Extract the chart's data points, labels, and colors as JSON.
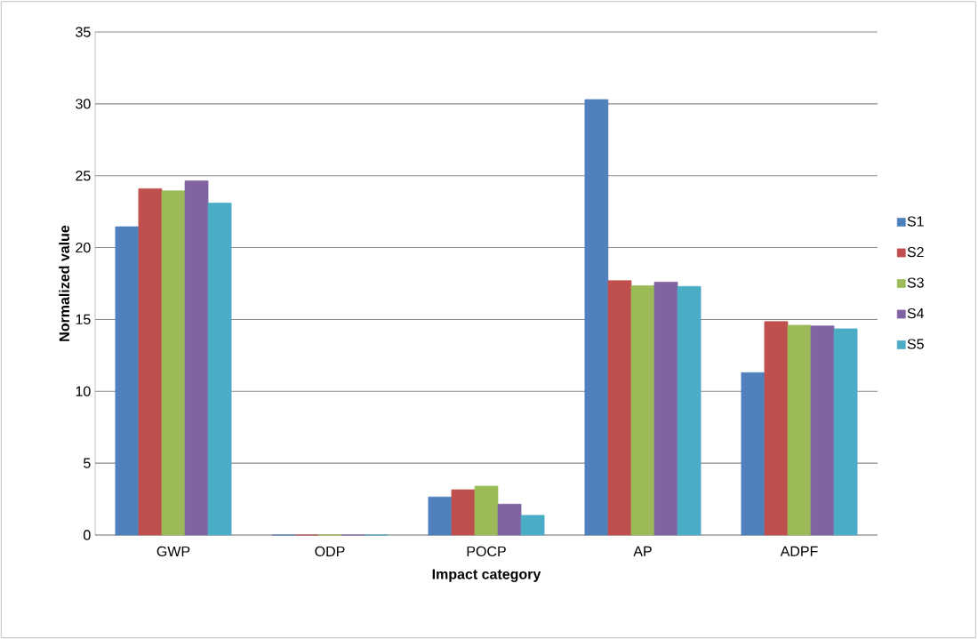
{
  "chart_data": {
    "type": "bar",
    "xlabel": "Impact category",
    "ylabel": "Normalized value",
    "categories": [
      "GWP",
      "ODP",
      "POCP",
      "AP",
      "ADPF"
    ],
    "series": [
      {
        "name": "S1",
        "color": "#4f81bd",
        "values": [
          21.45,
          0,
          2.65,
          30.3,
          11.3
        ]
      },
      {
        "name": "S2",
        "color": "#c0504d",
        "values": [
          24.1,
          0,
          3.15,
          17.7,
          14.85
        ]
      },
      {
        "name": "S3",
        "color": "#9bbb59",
        "values": [
          23.95,
          0,
          3.4,
          17.35,
          14.6
        ]
      },
      {
        "name": "S4",
        "color": "#8064a2",
        "values": [
          24.65,
          0,
          2.15,
          17.6,
          14.55
        ]
      },
      {
        "name": "S5",
        "color": "#4bacc6",
        "values": [
          23.1,
          0,
          1.37,
          17.3,
          14.35
        ]
      }
    ],
    "ylim": [
      0,
      35
    ],
    "yticks": [
      0,
      5,
      10,
      15,
      20,
      25,
      30,
      35
    ],
    "grid": "y",
    "legend": "right"
  }
}
